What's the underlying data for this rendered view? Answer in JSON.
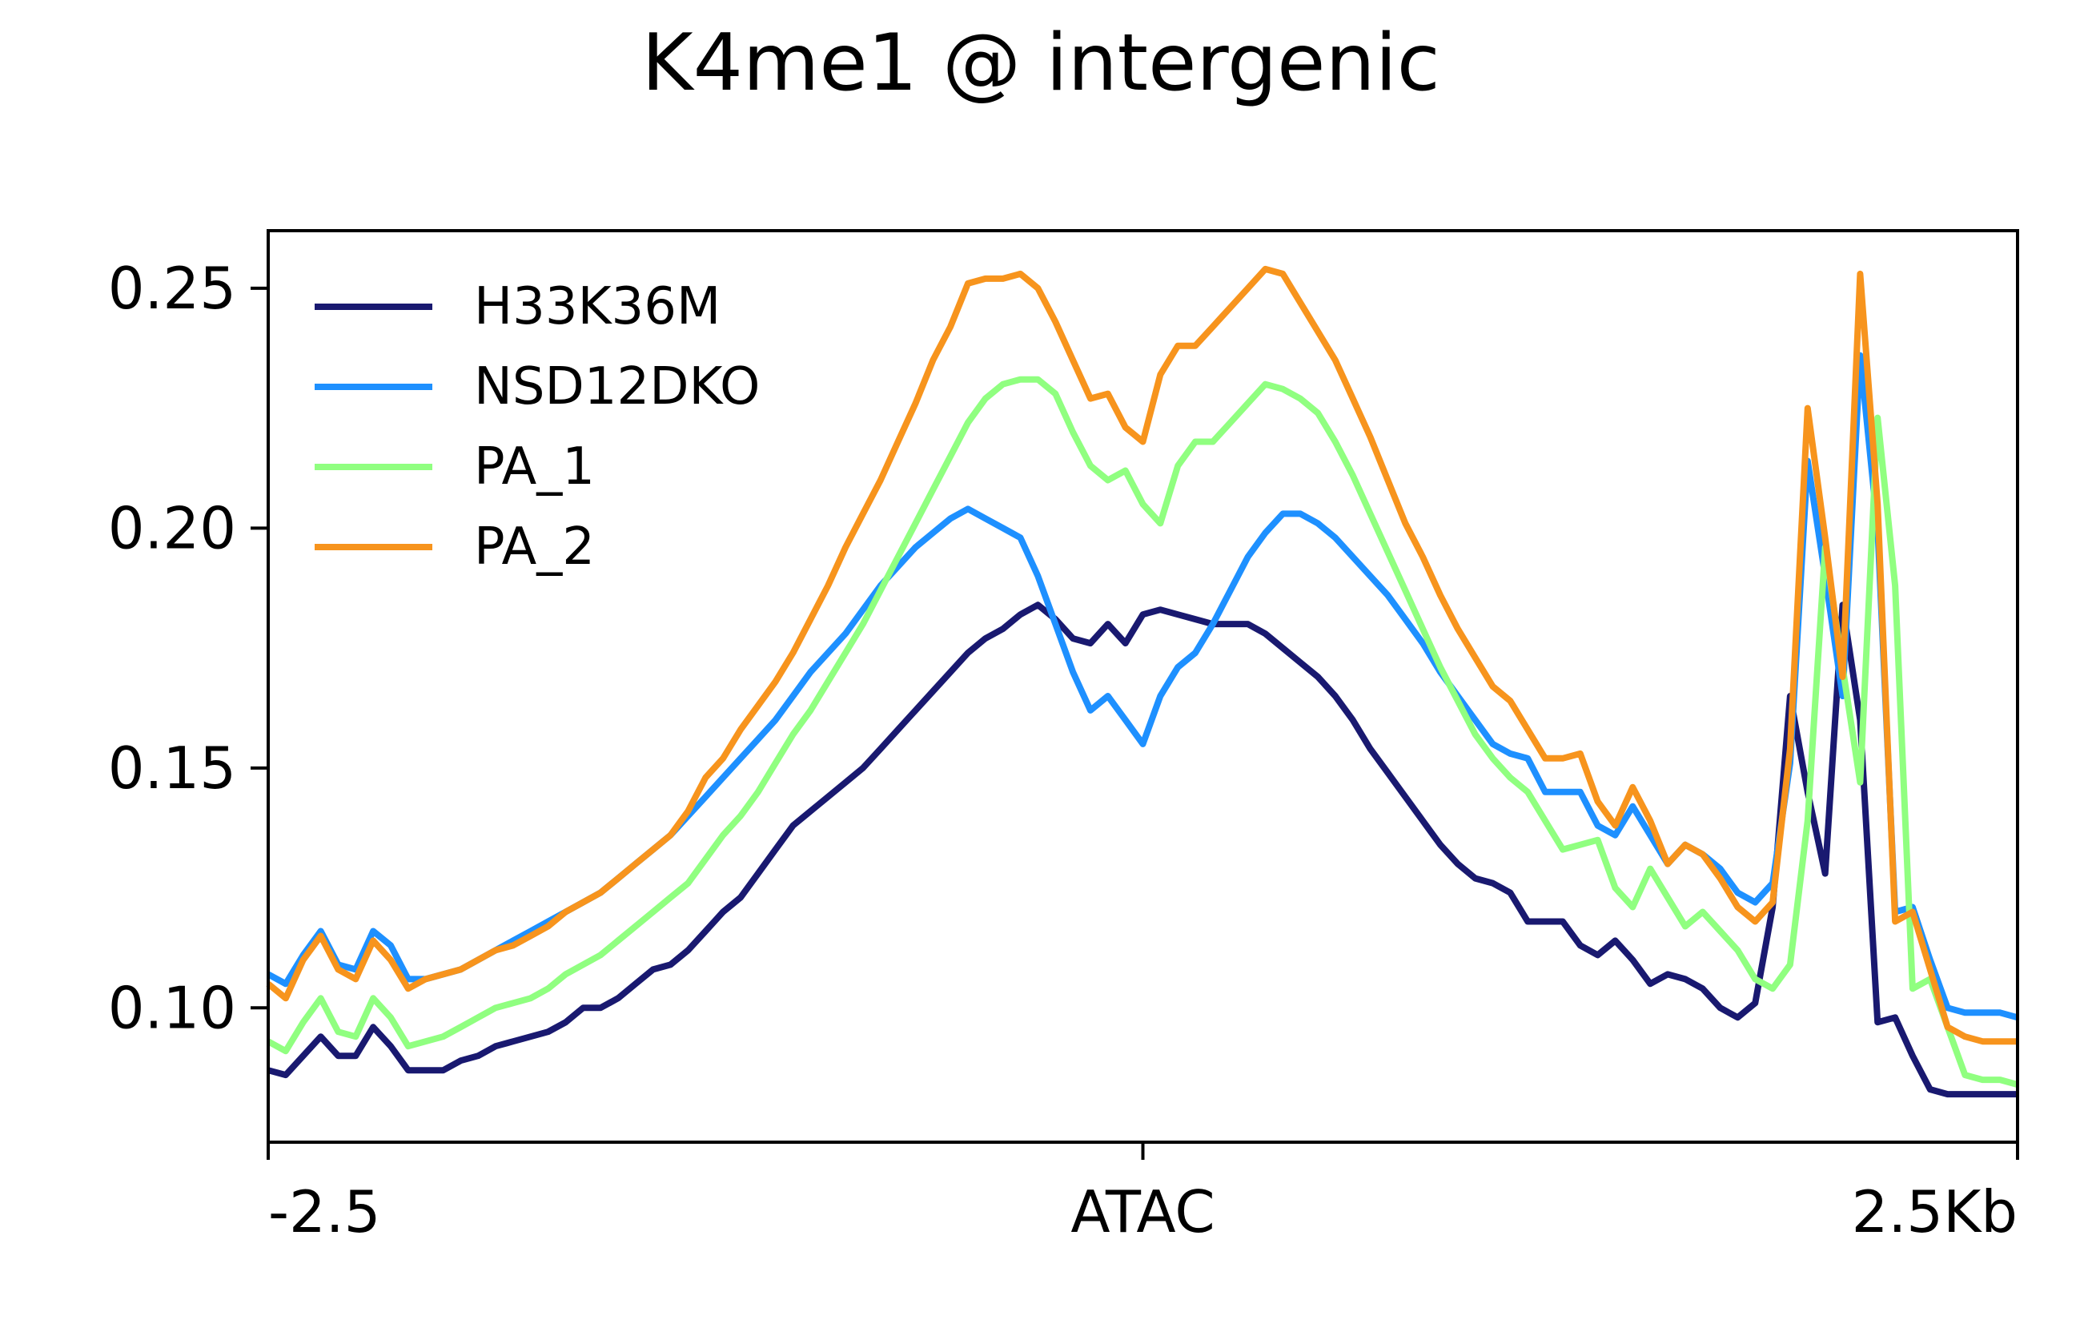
{
  "chart_data": {
    "type": "line",
    "title": "K4me1 @ intergenic",
    "xlabel": "",
    "ylabel": "",
    "x_tick_labels": [
      "-2.5",
      "ATAC",
      "2.5Kb"
    ],
    "x_tick_positions": [
      0,
      50,
      100
    ],
    "xlim": [
      0,
      100
    ],
    "ylim": [
      0.072,
      0.262
    ],
    "y_ticks": [
      0.1,
      0.15,
      0.2,
      0.25
    ],
    "y_tick_labels": [
      "0.10",
      "0.15",
      "0.20",
      "0.25"
    ],
    "legend_position": "top-left",
    "x_step": 1,
    "series": [
      {
        "name": "H33K36M",
        "color": "#191970",
        "values": [
          0.087,
          0.086,
          0.09,
          0.094,
          0.09,
          0.09,
          0.096,
          0.092,
          0.087,
          0.087,
          0.087,
          0.089,
          0.09,
          0.092,
          0.093,
          0.094,
          0.095,
          0.097,
          0.1,
          0.1,
          0.102,
          0.105,
          0.108,
          0.109,
          0.112,
          0.116,
          0.12,
          0.123,
          0.128,
          0.133,
          0.138,
          0.141,
          0.144,
          0.147,
          0.15,
          0.154,
          0.158,
          0.162,
          0.166,
          0.17,
          0.174,
          0.177,
          0.179,
          0.182,
          0.184,
          0.181,
          0.177,
          0.176,
          0.18,
          0.176,
          0.182,
          0.183,
          0.182,
          0.181,
          0.18,
          0.18,
          0.18,
          0.178,
          0.175,
          0.172,
          0.169,
          0.165,
          0.16,
          0.154,
          0.149,
          0.144,
          0.139,
          0.134,
          0.13,
          0.127,
          0.126,
          0.124,
          0.118,
          0.118,
          0.118,
          0.113,
          0.111,
          0.114,
          0.11,
          0.105,
          0.107,
          0.106,
          0.104,
          0.1,
          0.098,
          0.101,
          0.121,
          0.165,
          0.145,
          0.128,
          0.184,
          0.16,
          0.097,
          0.098,
          0.09,
          0.083,
          0.082,
          0.082,
          0.082,
          0.082,
          0.082
        ]
      },
      {
        "name": "NSD12DKO",
        "color": "#1e90ff",
        "values": [
          0.107,
          0.105,
          0.111,
          0.116,
          0.109,
          0.108,
          0.116,
          0.113,
          0.106,
          0.106,
          0.107,
          0.108,
          0.11,
          0.112,
          0.114,
          0.116,
          0.118,
          0.12,
          0.122,
          0.124,
          0.127,
          0.13,
          0.133,
          0.136,
          0.14,
          0.144,
          0.148,
          0.152,
          0.156,
          0.16,
          0.165,
          0.17,
          0.174,
          0.178,
          0.183,
          0.188,
          0.192,
          0.196,
          0.199,
          0.202,
          0.204,
          0.202,
          0.2,
          0.198,
          0.19,
          0.18,
          0.17,
          0.162,
          0.165,
          0.16,
          0.155,
          0.165,
          0.171,
          0.174,
          0.18,
          0.187,
          0.194,
          0.199,
          0.203,
          0.203,
          0.201,
          0.198,
          0.194,
          0.19,
          0.186,
          0.181,
          0.176,
          0.17,
          0.165,
          0.16,
          0.155,
          0.153,
          0.152,
          0.145,
          0.145,
          0.145,
          0.138,
          0.136,
          0.142,
          0.136,
          0.13,
          0.134,
          0.132,
          0.129,
          0.124,
          0.122,
          0.126,
          0.151,
          0.214,
          0.19,
          0.165,
          0.236,
          0.2,
          0.12,
          0.121,
          0.11,
          0.1,
          0.099,
          0.099,
          0.099,
          0.098
        ]
      },
      {
        "name": "PA_1",
        "color": "#90ff80",
        "values": [
          0.093,
          0.091,
          0.097,
          0.102,
          0.095,
          0.094,
          0.102,
          0.098,
          0.092,
          0.093,
          0.094,
          0.096,
          0.098,
          0.1,
          0.101,
          0.102,
          0.104,
          0.107,
          0.109,
          0.111,
          0.114,
          0.117,
          0.12,
          0.123,
          0.126,
          0.131,
          0.136,
          0.14,
          0.145,
          0.151,
          0.157,
          0.162,
          0.168,
          0.174,
          0.18,
          0.187,
          0.194,
          0.201,
          0.208,
          0.215,
          0.222,
          0.227,
          0.23,
          0.231,
          0.231,
          0.228,
          0.22,
          0.213,
          0.21,
          0.212,
          0.205,
          0.201,
          0.213,
          0.218,
          0.218,
          0.222,
          0.226,
          0.23,
          0.229,
          0.227,
          0.224,
          0.218,
          0.211,
          0.203,
          0.195,
          0.187,
          0.179,
          0.171,
          0.164,
          0.157,
          0.152,
          0.148,
          0.145,
          0.139,
          0.133,
          0.134,
          0.135,
          0.125,
          0.121,
          0.129,
          0.123,
          0.117,
          0.12,
          0.116,
          0.112,
          0.106,
          0.104,
          0.109,
          0.139,
          0.196,
          0.171,
          0.147,
          0.223,
          0.188,
          0.104,
          0.106,
          0.096,
          0.086,
          0.085,
          0.085,
          0.084
        ]
      },
      {
        "name": "PA_2",
        "color": "#f7941d",
        "values": [
          0.105,
          0.102,
          0.11,
          0.115,
          0.108,
          0.106,
          0.114,
          0.11,
          0.104,
          0.106,
          0.107,
          0.108,
          0.11,
          0.112,
          0.113,
          0.115,
          0.117,
          0.12,
          0.122,
          0.124,
          0.127,
          0.13,
          0.133,
          0.136,
          0.141,
          0.148,
          0.152,
          0.158,
          0.163,
          0.168,
          0.174,
          0.181,
          0.188,
          0.196,
          0.203,
          0.21,
          0.218,
          0.226,
          0.235,
          0.242,
          0.251,
          0.252,
          0.252,
          0.253,
          0.25,
          0.243,
          0.235,
          0.227,
          0.228,
          0.221,
          0.218,
          0.232,
          0.238,
          0.238,
          0.242,
          0.246,
          0.25,
          0.254,
          0.253,
          0.247,
          0.241,
          0.235,
          0.227,
          0.219,
          0.21,
          0.201,
          0.194,
          0.186,
          0.179,
          0.173,
          0.167,
          0.164,
          0.158,
          0.152,
          0.152,
          0.153,
          0.143,
          0.138,
          0.146,
          0.139,
          0.13,
          0.134,
          0.132,
          0.127,
          0.121,
          0.118,
          0.122,
          0.154,
          0.225,
          0.198,
          0.169,
          0.253,
          0.205,
          0.118,
          0.12,
          0.108,
          0.096,
          0.094,
          0.093,
          0.093,
          0.093
        ]
      }
    ]
  }
}
